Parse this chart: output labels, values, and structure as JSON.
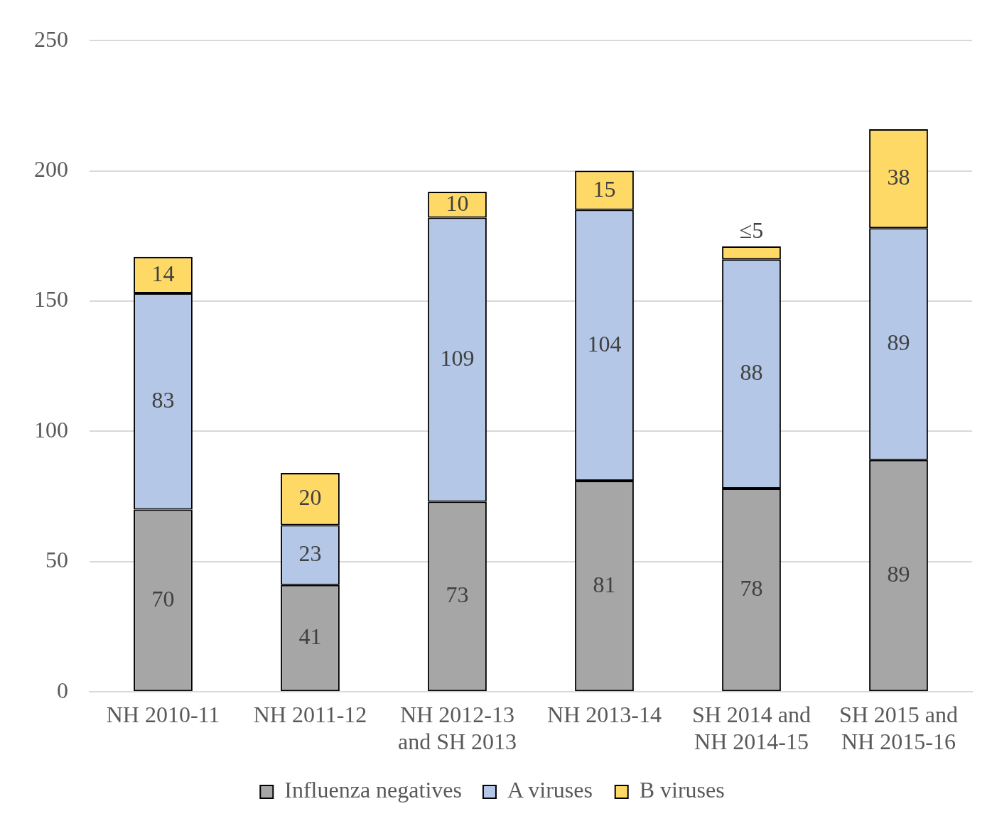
{
  "chart_data": {
    "type": "bar",
    "stacked": true,
    "categories": [
      "NH 2010-11",
      "NH 2011-12",
      "NH 2012-13 and SH 2013",
      "NH 2013-14",
      "SH 2014 and NH 2014-15",
      "SH 2015 and NH 2015-16"
    ],
    "series": [
      {
        "name": "Influenza negatives",
        "color": "#a6a6a6",
        "values": [
          70,
          41,
          73,
          81,
          78,
          89
        ],
        "value_labels": [
          "70",
          "41",
          "73",
          "81",
          "78",
          "89"
        ]
      },
      {
        "name": "A viruses",
        "color": "#b4c7e7",
        "values": [
          83,
          23,
          109,
          104,
          88,
          89
        ],
        "value_labels": [
          "83",
          "23",
          "109",
          "104",
          "88",
          "89"
        ]
      },
      {
        "name": "B viruses",
        "color": "#ffd966",
        "values": [
          14,
          20,
          10,
          15,
          5,
          38
        ],
        "value_labels": [
          "14",
          "20",
          "10",
          "15",
          "≤5",
          "38"
        ]
      }
    ],
    "ylim": [
      0,
      250
    ],
    "yticks": [
      0,
      50,
      100,
      150,
      200,
      250
    ],
    "grid": "y",
    "legend": "bottom"
  }
}
